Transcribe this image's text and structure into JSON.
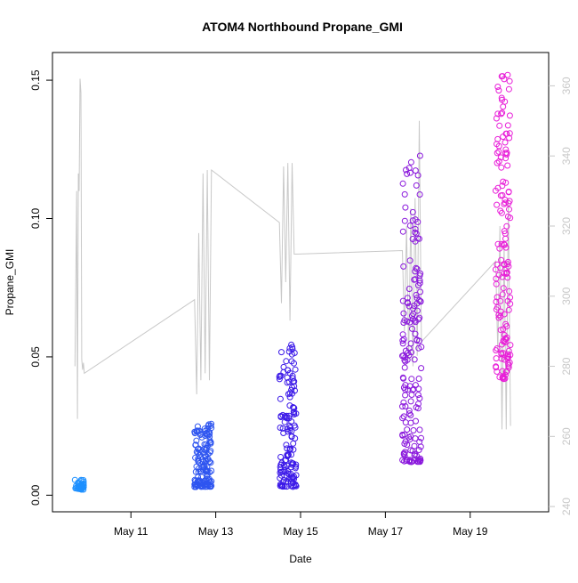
{
  "chart_data": {
    "type": "scatter",
    "title": "ATOM4 Northbound Propane_GMI",
    "xlabel": "Date",
    "ylabel": "Propane_GMI",
    "x_ticks": [
      "May 11",
      "May 13",
      "May 15",
      "May 17",
      "May 19"
    ],
    "x_tick_days": [
      11,
      13,
      15,
      17,
      19
    ],
    "xlim_days": [
      9.15,
      20.85
    ],
    "ylim": [
      -0.006,
      0.16
    ],
    "y_ticks": [
      0.0,
      0.05,
      0.1,
      0.15
    ],
    "y_tick_labels": [
      "0.00",
      "0.05",
      "0.10",
      "0.15"
    ],
    "y2_ticks": [
      240,
      260,
      280,
      300,
      320,
      340,
      360
    ],
    "y2lim": [
      238.5,
      369.5
    ],
    "grid": false,
    "marker": "open-circle",
    "point_clusters": [
      {
        "day_start": 9.68,
        "day_end": 9.9,
        "y_min": 0.002,
        "y_max": 0.006,
        "n": 40,
        "color": "#1e90ff"
      },
      {
        "day_start": 12.5,
        "day_end": 12.9,
        "y_min": 0.003,
        "y_max": 0.026,
        "n": 140,
        "color": "#2e55f0"
      },
      {
        "day_start": 14.5,
        "day_end": 14.9,
        "y_min": 0.003,
        "y_max": 0.056,
        "n": 140,
        "color": "#3c1ae8"
      },
      {
        "day_start": 17.4,
        "day_end": 17.85,
        "y_min": 0.012,
        "y_max": 0.123,
        "n": 170,
        "color": "#8a18dc"
      },
      {
        "day_start": 19.6,
        "day_end": 19.95,
        "y_min": 0.042,
        "y_max": 0.154,
        "n": 150,
        "color": "#e81ed8"
      }
    ],
    "secondary_line": {
      "color": "#c8c8c8",
      "x": [
        9.68,
        9.72,
        9.74,
        9.76,
        9.78,
        9.8,
        9.82,
        9.84,
        9.86,
        9.88,
        9.9,
        12.5,
        12.55,
        12.6,
        12.65,
        12.7,
        12.75,
        12.8,
        12.85,
        12.9,
        14.5,
        14.55,
        14.6,
        14.65,
        14.7,
        14.75,
        14.8,
        14.85,
        14.9,
        17.4,
        17.45,
        17.5,
        17.55,
        17.6,
        17.65,
        17.7,
        17.75,
        17.8,
        17.85,
        19.6,
        19.65,
        19.7,
        19.75,
        19.8,
        19.85,
        19.9,
        19.95
      ],
      "y": [
        280,
        330,
        265,
        335,
        330,
        362,
        358,
        282,
        279,
        281,
        278,
        299,
        272,
        318,
        276,
        335,
        278,
        336,
        276,
        336,
        321,
        298,
        337,
        304,
        338,
        293,
        338,
        312,
        312,
        313,
        290,
        320,
        282,
        325,
        280,
        328,
        283,
        350,
        287,
        310,
        284,
        320,
        262,
        315,
        262,
        328,
        263
      ]
    }
  }
}
